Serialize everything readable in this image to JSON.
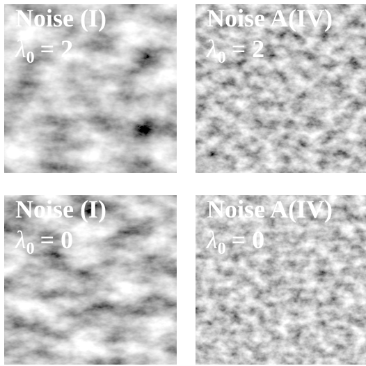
{
  "panels": [
    {
      "title": "Noise (I)",
      "symbol": "λ",
      "subscript": "0",
      "value": "= 2"
    },
    {
      "title": "Noise A(IV)",
      "symbol": "λ",
      "subscript": "0",
      "value": "= 2"
    },
    {
      "title": "Noise (I)",
      "symbol": "λ",
      "subscript": "0",
      "value": "= 0"
    },
    {
      "title": "Noise A(IV)",
      "symbol": "λ",
      "subscript": "0",
      "value": "= 0"
    }
  ]
}
